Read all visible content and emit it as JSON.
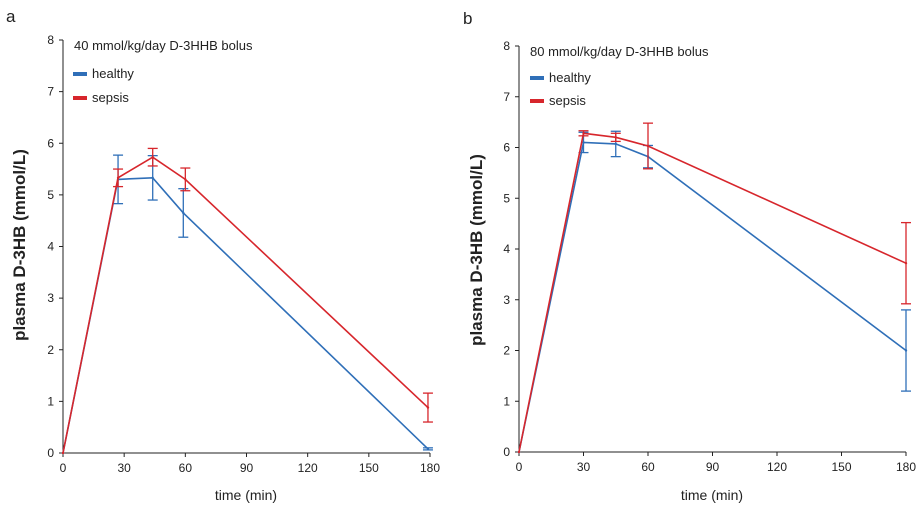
{
  "chart_data": [
    {
      "type": "line",
      "panel": "a",
      "title": "40 mmol/kg/day D-3HHB bolus",
      "xlabel": "time (min)",
      "ylabel": "plasma D-3HB (mmol/L)",
      "xlim": [
        0,
        180
      ],
      "ylim": [
        0,
        8
      ],
      "xticks": [
        0,
        30,
        60,
        90,
        120,
        150,
        180
      ],
      "yticks": [
        0,
        1,
        2,
        3,
        4,
        5,
        6,
        7,
        8
      ],
      "grid": false,
      "legend_position": "top-left",
      "series": [
        {
          "name": "healthy",
          "color": "#2f6fb8",
          "x": [
            0,
            27,
            44,
            59,
            179
          ],
          "y": [
            0,
            5.3,
            5.33,
            4.65,
            0.08
          ],
          "err_low": [
            0,
            0.47,
            0.43,
            0.47,
            0.02
          ],
          "err_high": [
            0,
            0.47,
            0.43,
            0.47,
            0.02
          ]
        },
        {
          "name": "sepsis",
          "color": "#d7262c",
          "x": [
            0,
            27,
            44,
            60,
            179
          ],
          "y": [
            0,
            5.33,
            5.73,
            5.3,
            0.88
          ],
          "err_low": [
            0,
            0.17,
            0.17,
            0.22,
            0.28
          ],
          "err_high": [
            0,
            0.17,
            0.17,
            0.22,
            0.28
          ]
        }
      ]
    },
    {
      "type": "line",
      "panel": "b",
      "title": "80 mmol/kg/day D-3HHB bolus",
      "xlabel": "time (min)",
      "ylabel": "plasma D-3HB (mmol/L)",
      "xlim": [
        0,
        180
      ],
      "ylim": [
        0,
        8
      ],
      "xticks": [
        0,
        30,
        60,
        90,
        120,
        150,
        180
      ],
      "yticks": [
        0,
        1,
        2,
        3,
        4,
        5,
        6,
        7,
        8
      ],
      "grid": false,
      "legend_position": "top-left",
      "series": [
        {
          "name": "healthy",
          "color": "#2f6fb8",
          "x": [
            0,
            30,
            45,
            60,
            180
          ],
          "y": [
            0,
            6.1,
            6.07,
            5.82,
            2.0
          ],
          "err_low": [
            0,
            0.2,
            0.25,
            0.22,
            0.8
          ],
          "err_high": [
            0,
            0.2,
            0.25,
            0.22,
            0.8
          ]
        },
        {
          "name": "sepsis",
          "color": "#d7262c",
          "x": [
            0,
            30,
            45,
            60,
            180
          ],
          "y": [
            0,
            6.28,
            6.2,
            6.03,
            3.72
          ],
          "err_low": [
            0,
            0.05,
            0.08,
            0.45,
            0.8
          ],
          "err_high": [
            0,
            0.05,
            0.08,
            0.45,
            0.8
          ]
        }
      ]
    }
  ]
}
